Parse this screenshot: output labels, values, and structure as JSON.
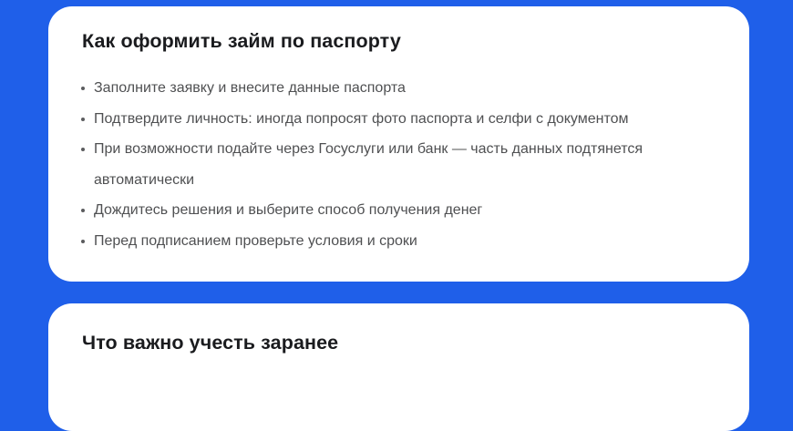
{
  "colors": {
    "page_background": "#1f5fe9",
    "card_background": "#ffffff",
    "title_text": "#1a1b1e",
    "body_text": "#4f5052"
  },
  "sections": [
    {
      "title": "Как оформить займ по паспорту",
      "bullets": [
        "Заполните заявку и внесите данные паспорта",
        "Подтвердите личность: иногда попросят фото паспорта и селфи с документом",
        "При возможности подайте через Госуслуги или банк — часть данных подтянется автоматически",
        "Дождитесь решения и выберите способ получения денег",
        "Перед подписанием проверьте условия и сроки"
      ]
    },
    {
      "title": "Что важно учесть заранее",
      "bullets": []
    }
  ]
}
